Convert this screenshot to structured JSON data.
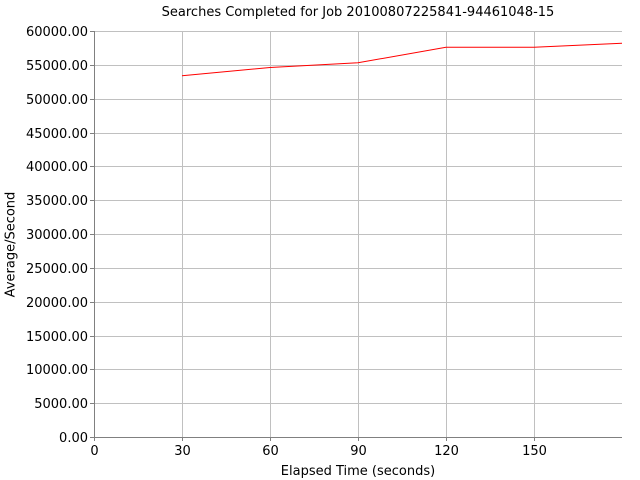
{
  "chart_data": {
    "type": "line",
    "title": "Searches Completed for Job 20100807225841-94461048-15",
    "xlabel": "Elapsed Time (seconds)",
    "ylabel": "Average/Second",
    "xlim": [
      0,
      180
    ],
    "ylim": [
      0,
      60000
    ],
    "x_ticks": [
      0,
      30,
      60,
      90,
      120,
      150
    ],
    "x_tick_labels": [
      "0",
      "30",
      "60",
      "90",
      "120",
      "150"
    ],
    "y_ticks": [
      0,
      5000,
      10000,
      15000,
      20000,
      25000,
      30000,
      35000,
      40000,
      45000,
      50000,
      55000,
      60000
    ],
    "y_tick_labels": [
      "0.00",
      "5000.00",
      "10000.00",
      "15000.00",
      "20000.00",
      "25000.00",
      "30000.00",
      "35000.00",
      "40000.00",
      "45000.00",
      "50000.00",
      "55000.00",
      "60000.00"
    ],
    "grid": true,
    "legend": "none",
    "series": [
      {
        "color": "#ff0000",
        "x": [
          30,
          60,
          90,
          120,
          150,
          180
        ],
        "y": [
          53400,
          54600,
          55300,
          57600,
          57600,
          58200
        ]
      }
    ]
  }
}
